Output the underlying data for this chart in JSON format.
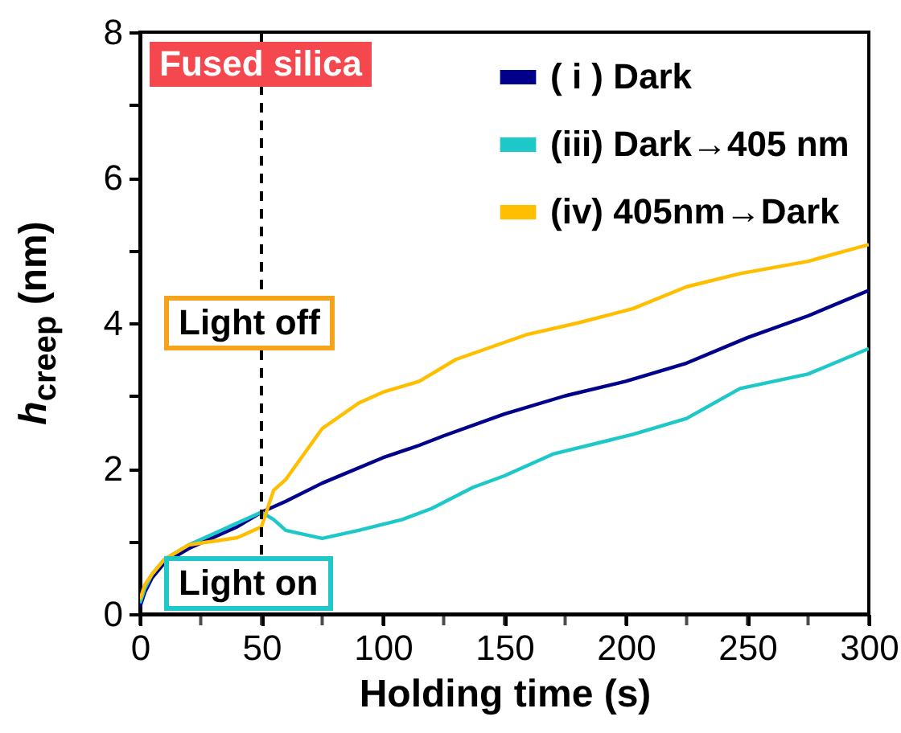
{
  "chart_data": {
    "type": "line",
    "xlabel": "Holding time (s)",
    "ylabel": "h$_{creep}$ (nm)",
    "xlim": [
      0,
      300
    ],
    "ylim": [
      0,
      8
    ],
    "xticks": [
      0,
      {
        "value": 25,
        "label": null
      },
      50,
      {
        "value": 75,
        "label": null
      },
      100,
      {
        "value": 125,
        "label": null
      },
      150,
      {
        "value": 175,
        "label": null
      },
      200,
      {
        "value": 225,
        "label": null
      },
      250,
      {
        "value": 275,
        "label": null
      },
      300
    ],
    "yticks": [
      0,
      {
        "value": 1,
        "label": null
      },
      2,
      {
        "value": 3,
        "label": null
      },
      4,
      {
        "value": 5,
        "label": null
      },
      6,
      {
        "value": 7,
        "label": null
      },
      8
    ],
    "legend": "top right",
    "grid": false,
    "line_style": "solid",
    "marker": "none",
    "series": [
      {
        "name": "( i ) Dark",
        "color": "#00008b",
        "x": [
          0,
          2,
          5,
          10,
          20,
          30,
          40,
          50,
          60,
          75,
          100,
          115,
          125,
          150,
          175,
          200,
          225,
          250,
          275,
          300
        ],
        "values": [
          0.1,
          0.3,
          0.5,
          0.7,
          0.9,
          1.05,
          1.2,
          1.4,
          1.55,
          1.8,
          2.15,
          2.32,
          2.45,
          2.75,
          3.0,
          3.2,
          3.45,
          3.8,
          4.1,
          4.45
        ]
      },
      {
        "name": "(iii) Dark→405 nm",
        "color": "#1ec8c8",
        "x": [
          0,
          2,
          5,
          10,
          20,
          30,
          40,
          50,
          55,
          60,
          75,
          90,
          108,
          120,
          137,
          150,
          170,
          203,
          225,
          247,
          275,
          300
        ],
        "values": [
          0.15,
          0.35,
          0.55,
          0.75,
          0.95,
          1.1,
          1.25,
          1.4,
          1.3,
          1.15,
          1.04,
          1.15,
          1.3,
          1.45,
          1.74,
          1.9,
          2.2,
          2.47,
          2.69,
          3.1,
          3.3,
          3.65
        ]
      },
      {
        "name": "(iv) 405nm→Dark",
        "color": "#ffbf00",
        "x": [
          0,
          2,
          5,
          10,
          20,
          30,
          40,
          50,
          53,
          55,
          60,
          75,
          90,
          100,
          115,
          130,
          159,
          180,
          203,
          225,
          247,
          275,
          300
        ],
        "values": [
          0.2,
          0.4,
          0.55,
          0.75,
          0.95,
          1.0,
          1.05,
          1.2,
          1.5,
          1.7,
          1.85,
          2.55,
          2.9,
          3.05,
          3.2,
          3.5,
          3.84,
          4.0,
          4.2,
          4.5,
          4.68,
          4.85,
          5.08
        ]
      }
    ],
    "ref_lines": [
      {
        "axis": "x",
        "value": 50,
        "color": "#000000",
        "line_style": "dashed"
      }
    ],
    "annotations": [
      "Fused silica",
      "Light off",
      "Light on"
    ]
  }
}
